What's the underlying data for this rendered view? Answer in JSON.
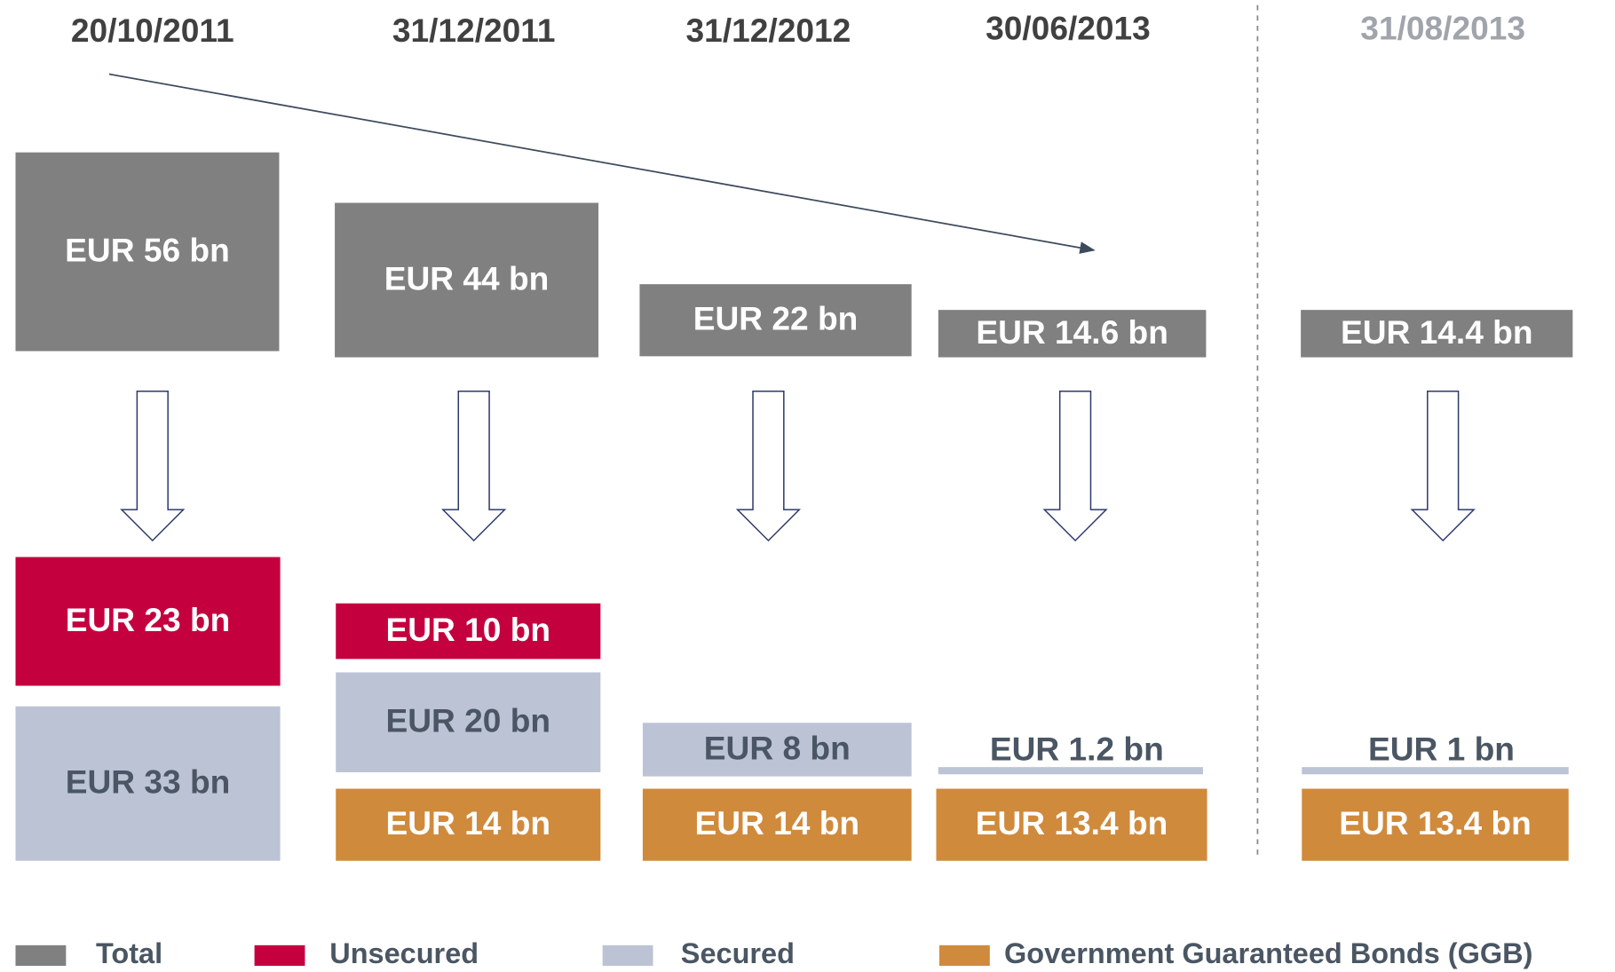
{
  "columns": [
    {
      "date": "20/10/2011",
      "total": "EUR 56 bn",
      "unsecured": "EUR 23 bn",
      "secured": "EUR 33 bn"
    },
    {
      "date": "31/12/2011",
      "total": "EUR 44 bn",
      "unsecured": "EUR 10 bn",
      "secured": "EUR 20 bn",
      "ggb": "EUR 14 bn"
    },
    {
      "date": "31/12/2012",
      "total": "EUR 22 bn",
      "secured": "EUR 8 bn",
      "ggb": "EUR 14 bn"
    },
    {
      "date": "30/06/2013",
      "total": "EUR 14.6 bn",
      "secured": "EUR 1.2 bn",
      "ggb": "EUR 13.4 bn"
    },
    {
      "date": "31/08/2013",
      "total": "EUR 14.4 bn",
      "secured": "EUR 1 bn",
      "ggb": "EUR 13.4 bn"
    }
  ],
  "legend": [
    "Total",
    "Unsecured",
    "Secured",
    "Government Guaranteed Bonds (GGB)"
  ]
}
